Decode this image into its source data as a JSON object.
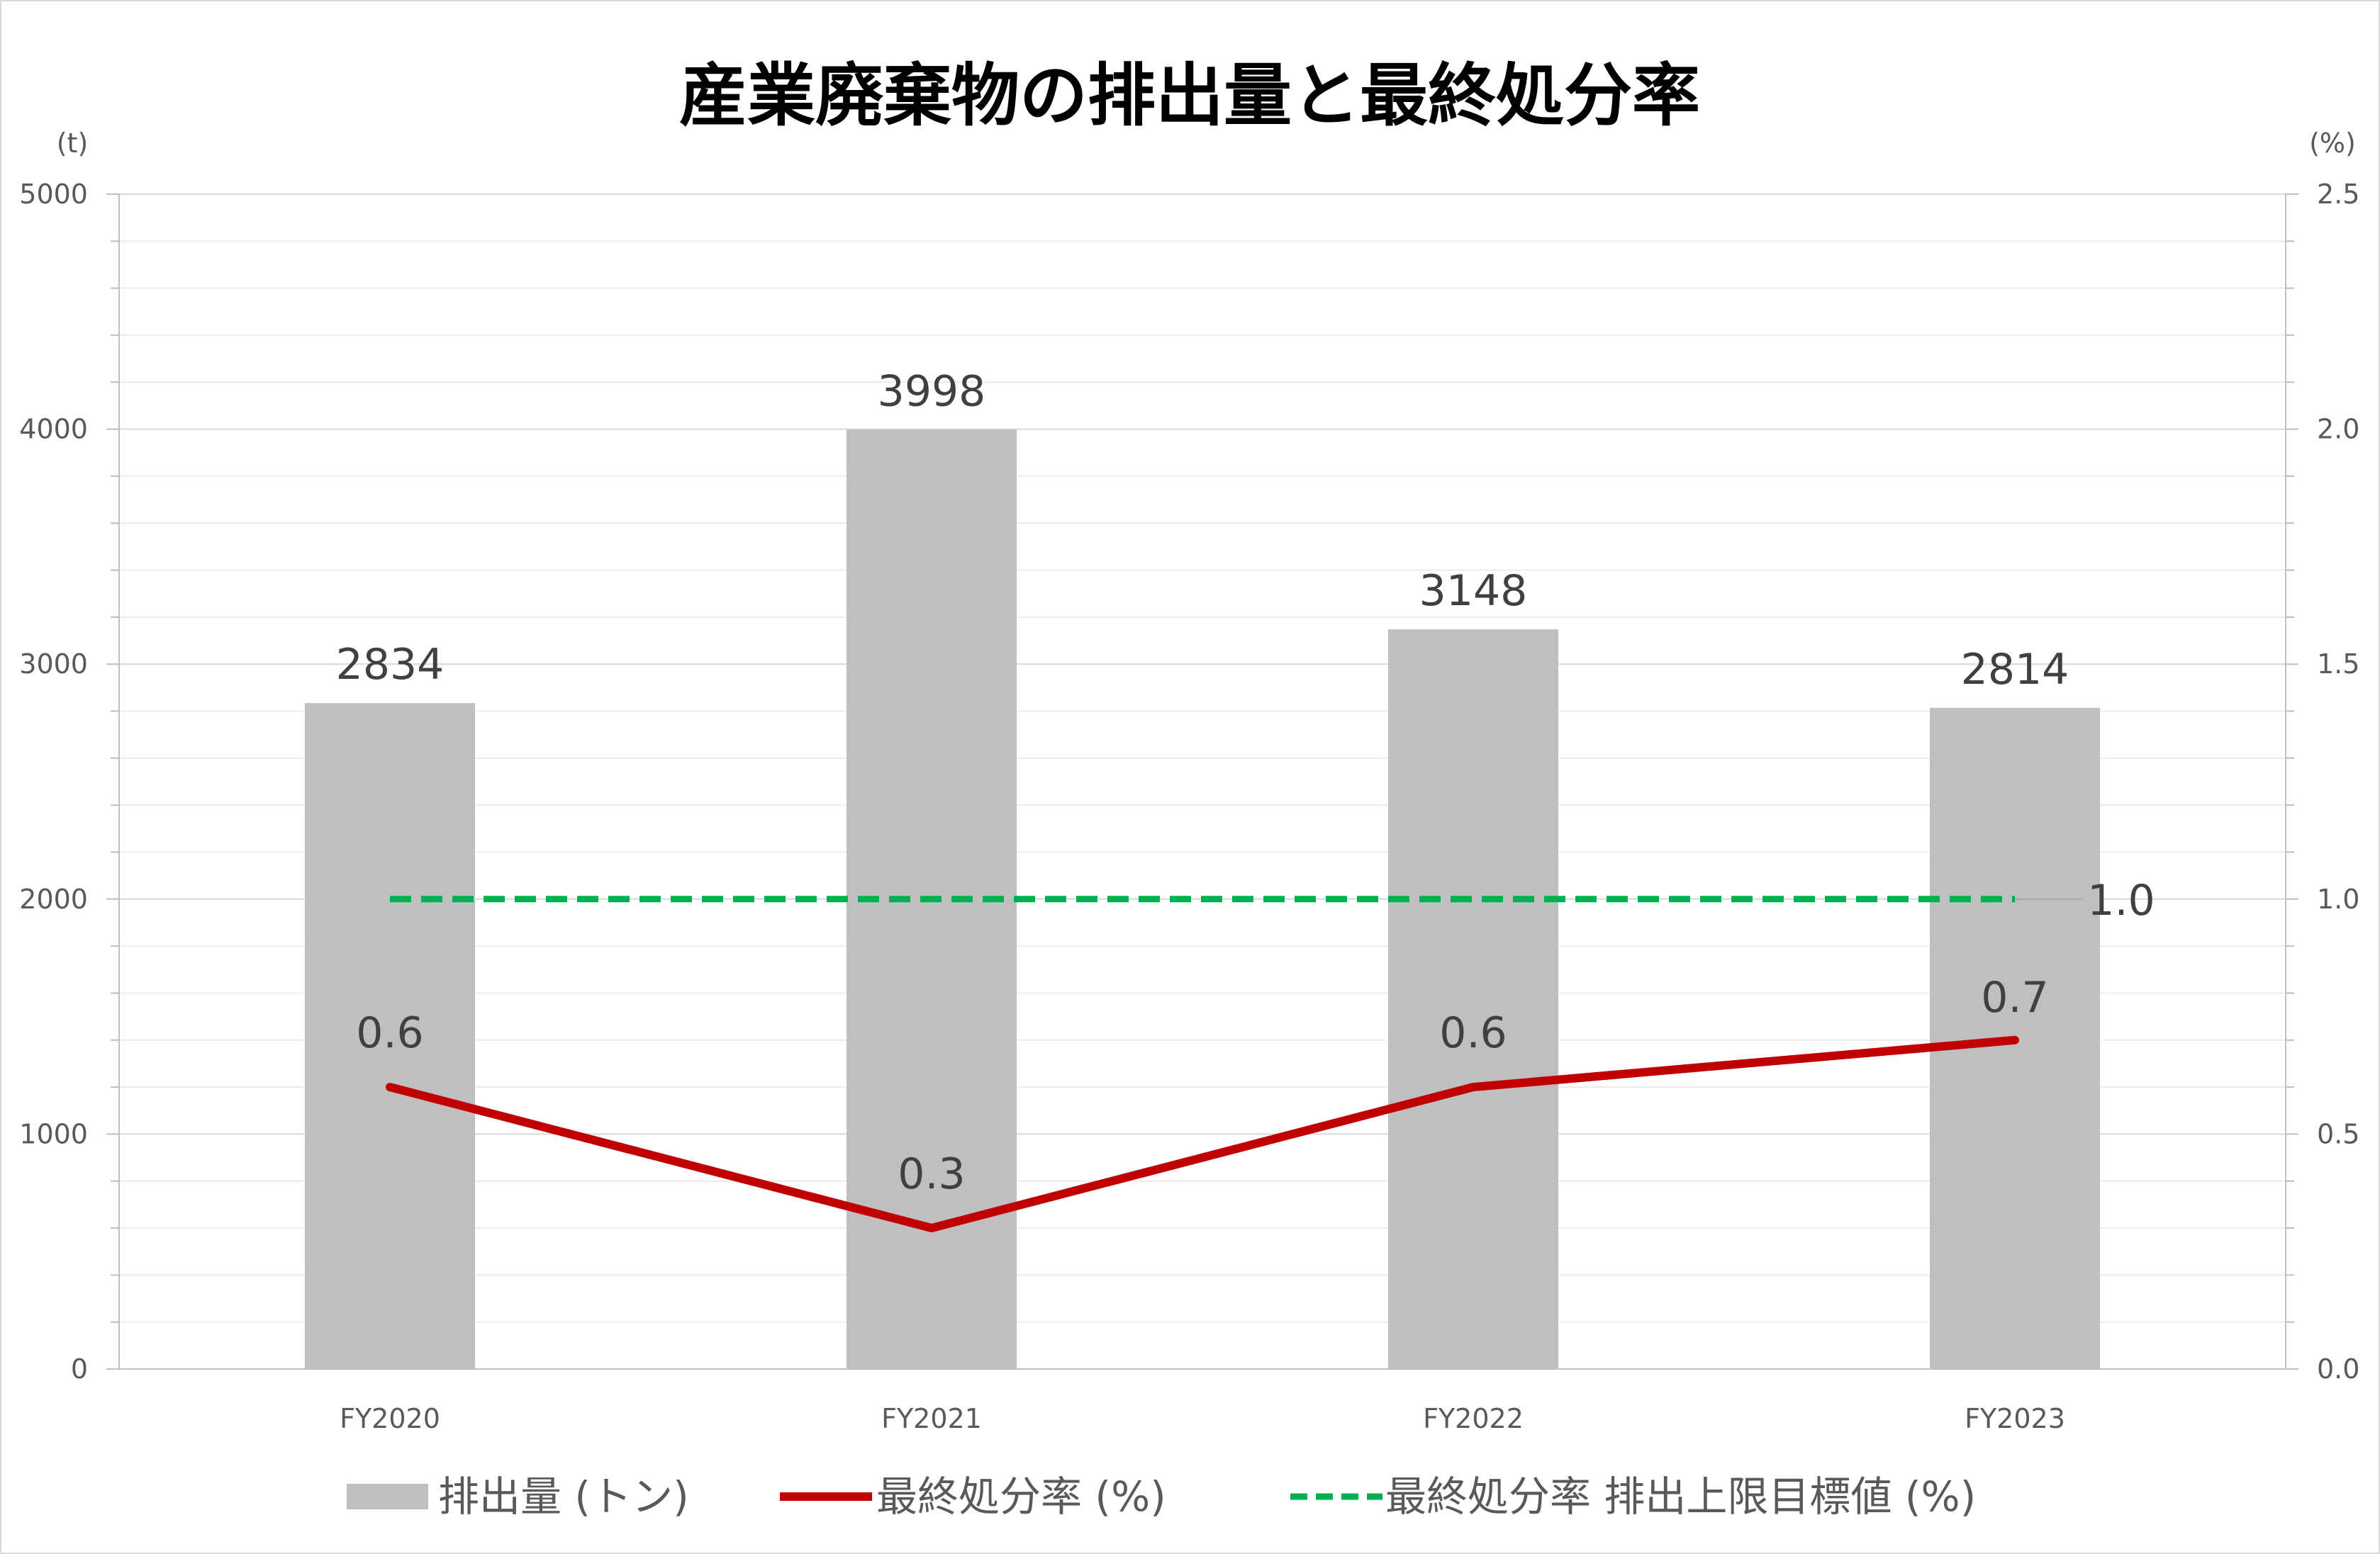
{
  "chart_data": {
    "type": "bar",
    "title": "産業廃棄物の排出量と最終処分率",
    "categories": [
      "FY2020",
      "FY2021",
      "FY2022",
      "FY2023"
    ],
    "y_left": {
      "unit": "(t)",
      "range": [
        0,
        5000
      ],
      "ticks": [
        "0",
        "1000",
        "2000",
        "3000",
        "4000",
        "5000"
      ],
      "tick_values": [
        0,
        1000,
        2000,
        3000,
        4000,
        5000
      ]
    },
    "y_right": {
      "unit": "(%)",
      "range": [
        0,
        2.5
      ],
      "ticks": [
        "0.0",
        "0.5",
        "1.0",
        "1.5",
        "2.0",
        "2.5"
      ],
      "tick_values": [
        0,
        0.5,
        1.0,
        1.5,
        2.0,
        2.5
      ]
    },
    "series": [
      {
        "name": "排出量 (トン)",
        "type": "bar",
        "axis": "left",
        "color": "#bfbfbf",
        "values": [
          2834,
          3998,
          3148,
          2814
        ],
        "labels": [
          "2834",
          "3998",
          "3148",
          "2814"
        ]
      },
      {
        "name": "最終処分率 (%)",
        "type": "line",
        "axis": "right",
        "color": "#c00000",
        "values": [
          0.6,
          0.3,
          0.6,
          0.7
        ],
        "labels": [
          "0.6",
          "0.3",
          "0.6",
          "0.7"
        ]
      },
      {
        "name": "最終処分率 排出上限目標値 (%)",
        "type": "line",
        "style": "dashed",
        "axis": "right",
        "color": "#00b050",
        "values": [
          1.0,
          1.0,
          1.0,
          1.0
        ],
        "end_label": "1.0"
      }
    ],
    "grid": true,
    "legend": "bottom"
  }
}
